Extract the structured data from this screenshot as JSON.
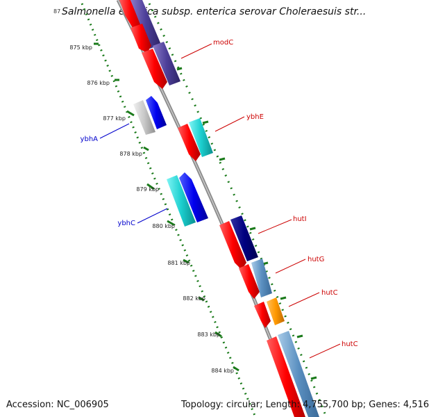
{
  "title": "Salmonella enterica subsp. enterica serovar Choleraesuis str...",
  "title_clipped_tick": "87",
  "footer": {
    "accession": "Accession: NC_006905",
    "topology": "Topology: circular; Length: 4,755,700 bp; Genes: 4,516"
  },
  "colors": {
    "backbone": "#888888",
    "ruler": "#1a7a1a",
    "forward_label": "#cc0000",
    "reverse_label": "#0000cc"
  },
  "ticks": [
    "875 kbp",
    "876 kbp",
    "877 kbp",
    "878 kbp",
    "879 kbp",
    "880 kbp",
    "881 kbp",
    "882 kbp",
    "883 kbp",
    "884 kbp"
  ],
  "gene_labels": [
    {
      "text": "modC",
      "strand": "forward"
    },
    {
      "text": "ybhE",
      "strand": "forward"
    },
    {
      "text": "hutI",
      "strand": "forward"
    },
    {
      "text": "hutG",
      "strand": "forward"
    },
    {
      "text": "hutC",
      "strand": "forward"
    },
    {
      "text": "hutC",
      "strand": "forward"
    },
    {
      "text": "ybhA",
      "strand": "reverse"
    },
    {
      "text": "ybhC",
      "strand": "reverse"
    }
  ]
}
